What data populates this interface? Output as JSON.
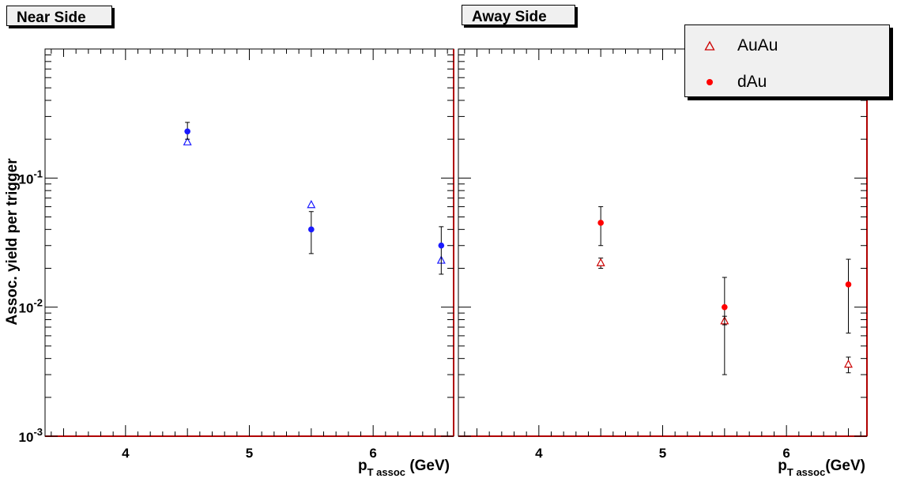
{
  "panels": {
    "near": {
      "title": "Near Side"
    },
    "away": {
      "title": "Away Side"
    }
  },
  "legend": {
    "items": [
      {
        "label": "AuAu",
        "marker": "open-triangle",
        "color": "#cc0000"
      },
      {
        "label": "dAu",
        "marker": "filled-circle",
        "color": "#ff0000"
      }
    ]
  },
  "axes": {
    "ylabel": "Assoc. yield per trigger",
    "xlabel_main": "p",
    "xlabel_sub": "T assoc",
    "xlabel_unit": " (GeV)",
    "xlabel_unit_away": "(GeV)",
    "y_ticks": [
      {
        "base": "10",
        "exp": "-1",
        "value": 0.1
      },
      {
        "base": "10",
        "exp": "-2",
        "value": 0.01
      },
      {
        "base": "10",
        "exp": "-3",
        "value": 0.001
      }
    ],
    "x_ticks": [
      "4",
      "5",
      "6"
    ]
  },
  "colors": {
    "near_series": "#1a1aff",
    "away_series": "#ff0000",
    "frame_bottom": "#b00000"
  },
  "chart_data": [
    {
      "type": "scatter",
      "title": "Near Side",
      "xlabel": "p_T assoc (GeV)",
      "ylabel": "Assoc. yield per trigger",
      "xlim": [
        3.35,
        6.65
      ],
      "ylim": [
        0.001,
        1.0
      ],
      "yscale": "log",
      "series": [
        {
          "marker": "open-triangle",
          "color": "#1a1aff",
          "x": [
            4.5,
            5.5,
            6.55
          ],
          "y": [
            0.19,
            0.062,
            0.023
          ]
        },
        {
          "marker": "filled-circle",
          "color": "#1a1aff",
          "x": [
            4.5,
            5.5,
            6.55
          ],
          "y": [
            0.23,
            0.04,
            0.03
          ],
          "err_low": [
            0.2,
            0.026,
            0.018
          ],
          "err_high": [
            0.27,
            0.055,
            0.042
          ]
        }
      ]
    },
    {
      "type": "scatter",
      "title": "Away Side",
      "xlabel": "p_T assoc (GeV)",
      "ylabel": "",
      "xlim": [
        3.35,
        6.65
      ],
      "ylim": [
        0.001,
        1.0
      ],
      "yscale": "log",
      "series": [
        {
          "name": "AuAu",
          "marker": "open-triangle",
          "color": "#cc0000",
          "x": [
            4.5,
            5.5,
            6.5
          ],
          "y": [
            0.022,
            0.0078,
            0.0036
          ],
          "err_low": [
            0.02,
            0.0073,
            0.0031
          ],
          "err_high": [
            0.024,
            0.0085,
            0.0041
          ]
        },
        {
          "name": "dAu",
          "marker": "filled-circle",
          "color": "#ff0000",
          "x": [
            4.5,
            5.5,
            6.5
          ],
          "y": [
            0.045,
            0.01,
            0.015
          ],
          "err_low": [
            0.03,
            0.003,
            0.0063
          ],
          "err_high": [
            0.06,
            0.017,
            0.0235
          ]
        }
      ]
    }
  ]
}
